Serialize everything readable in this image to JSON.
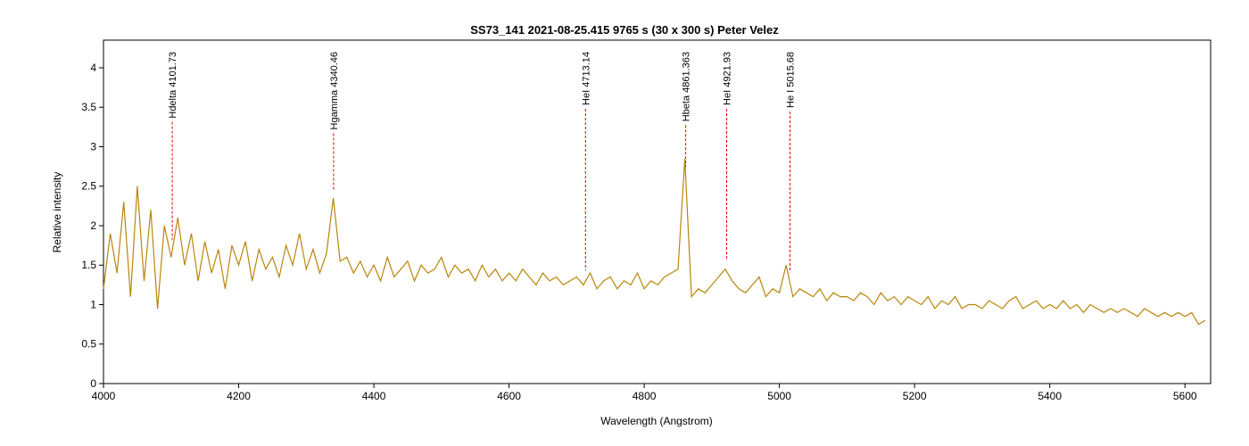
{
  "chart_data": {
    "type": "line",
    "title": "SS73_141  2021-08-25.415  9765 s (30 x 300 s)  Peter Velez",
    "x_label": "Wavelength (Angstrom)",
    "y_label": "Relative intensity",
    "x": [
      4000,
      4010,
      4020,
      4030,
      4040,
      4050,
      4060,
      4070,
      4080,
      4090,
      4100,
      4110,
      4120,
      4130,
      4140,
      4150,
      4160,
      4170,
      4180,
      4190,
      4200,
      4210,
      4220,
      4230,
      4240,
      4250,
      4260,
      4270,
      4280,
      4290,
      4300,
      4310,
      4320,
      4330,
      4340,
      4350,
      4360,
      4370,
      4380,
      4390,
      4400,
      4410,
      4420,
      4430,
      4440,
      4450,
      4460,
      4470,
      4480,
      4490,
      4500,
      4510,
      4520,
      4530,
      4540,
      4550,
      4560,
      4570,
      4580,
      4590,
      4600,
      4610,
      4620,
      4630,
      4640,
      4650,
      4660,
      4670,
      4680,
      4690,
      4700,
      4710,
      4720,
      4730,
      4740,
      4750,
      4760,
      4770,
      4780,
      4790,
      4800,
      4810,
      4820,
      4830,
      4840,
      4850,
      4860,
      4870,
      4880,
      4890,
      4900,
      4910,
      4920,
      4930,
      4940,
      4950,
      4960,
      4970,
      4980,
      4990,
      5000,
      5010,
      5020,
      5030,
      5040,
      5050,
      5060,
      5070,
      5080,
      5090,
      5100,
      5110,
      5120,
      5130,
      5140,
      5150,
      5160,
      5170,
      5180,
      5190,
      5200,
      5210,
      5220,
      5230,
      5240,
      5250,
      5260,
      5270,
      5280,
      5290,
      5300,
      5310,
      5320,
      5330,
      5340,
      5350,
      5360,
      5370,
      5380,
      5390,
      5400,
      5410,
      5420,
      5430,
      5440,
      5450,
      5460,
      5470,
      5480,
      5490,
      5500,
      5510,
      5520,
      5530,
      5540,
      5550,
      5560,
      5570,
      5580,
      5590,
      5600,
      5610,
      5620,
      5630
    ],
    "series": [
      {
        "color": "#b8860b",
        "values": [
          1.2,
          1.9,
          1.4,
          2.3,
          1.1,
          2.5,
          1.3,
          2.2,
          0.95,
          2.0,
          1.6,
          2.1,
          1.5,
          1.9,
          1.3,
          1.8,
          1.4,
          1.7,
          1.2,
          1.75,
          1.5,
          1.8,
          1.3,
          1.7,
          1.45,
          1.6,
          1.35,
          1.75,
          1.5,
          1.9,
          1.45,
          1.7,
          1.4,
          1.65,
          2.35,
          1.55,
          1.6,
          1.4,
          1.55,
          1.35,
          1.5,
          1.3,
          1.6,
          1.35,
          1.45,
          1.55,
          1.3,
          1.5,
          1.4,
          1.45,
          1.6,
          1.35,
          1.5,
          1.4,
          1.45,
          1.3,
          1.5,
          1.35,
          1.45,
          1.3,
          1.4,
          1.3,
          1.45,
          1.35,
          1.25,
          1.4,
          1.3,
          1.35,
          1.25,
          1.3,
          1.35,
          1.25,
          1.4,
          1.2,
          1.3,
          1.35,
          1.2,
          1.3,
          1.25,
          1.4,
          1.2,
          1.3,
          1.25,
          1.35,
          1.4,
          1.45,
          2.85,
          1.1,
          1.2,
          1.15,
          1.25,
          1.35,
          1.45,
          1.3,
          1.2,
          1.15,
          1.25,
          1.35,
          1.1,
          1.2,
          1.15,
          1.5,
          1.1,
          1.2,
          1.15,
          1.1,
          1.2,
          1.05,
          1.15,
          1.1,
          1.1,
          1.05,
          1.15,
          1.1,
          1.0,
          1.15,
          1.05,
          1.1,
          1.0,
          1.1,
          1.05,
          1.0,
          1.1,
          0.95,
          1.05,
          1.0,
          1.1,
          0.95,
          1.0,
          1.0,
          0.95,
          1.05,
          1.0,
          0.95,
          1.05,
          1.1,
          0.95,
          1.0,
          1.05,
          0.95,
          1.0,
          0.95,
          1.05,
          0.95,
          1.0,
          0.9,
          1.0,
          0.95,
          0.9,
          0.95,
          0.9,
          0.95,
          0.9,
          0.85,
          0.95,
          0.9,
          0.85,
          0.9,
          0.85,
          0.9,
          0.85,
          0.9,
          0.75,
          0.8
        ]
      }
    ],
    "xlim": [
      4000,
      5638
    ],
    "xticks": [
      4000,
      4200,
      4400,
      4600,
      4800,
      5000,
      5200,
      5400,
      5600
    ],
    "ylim": [
      0,
      4.35
    ],
    "yticks": [
      0,
      0.5,
      1,
      1.5,
      2,
      2.5,
      3,
      3.5,
      4
    ],
    "annotation_color": "#e00000",
    "annotations": [
      {
        "x": 4101.73,
        "label": "Hdelta 4101.73"
      },
      {
        "x": 4340.46,
        "label": "Hgamma 4340.46"
      },
      {
        "x": 4713.14,
        "label": "HeI 4713.14"
      },
      {
        "x": 4861.363,
        "label": "Hbeta 4861.363"
      },
      {
        "x": 4921.93,
        "label": "HeI 4921.93"
      },
      {
        "x": 5015.68,
        "label": "He I 5015.68"
      }
    ]
  }
}
